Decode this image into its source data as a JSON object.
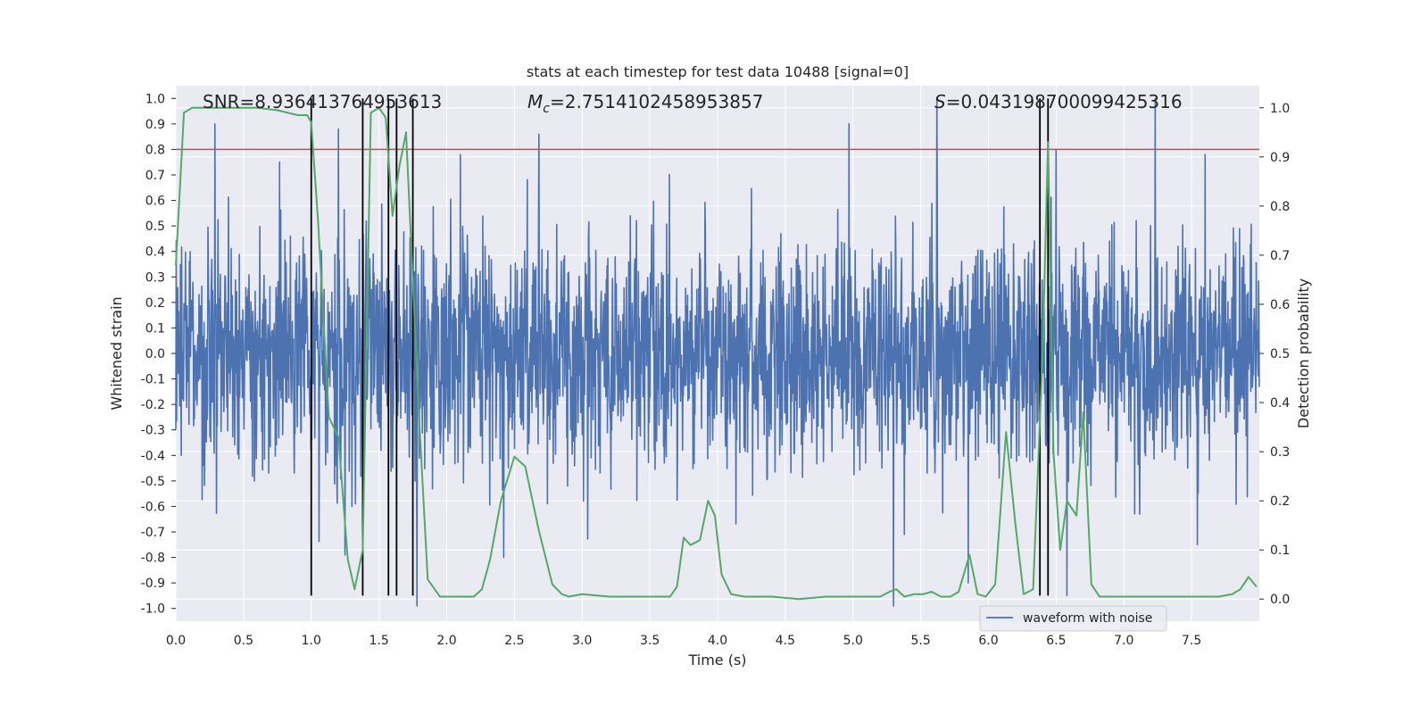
{
  "chart_data": {
    "type": "line",
    "title": "stats at each timestep for test data 10488 [signal=0]",
    "xlabel": "Time (s)",
    "ylabel_left": "Whitened strain",
    "ylabel_right": "Detection probability",
    "xlim": [
      0.0,
      8.0
    ],
    "ylim_left": [
      -1.05,
      1.05
    ],
    "ylim_right": [
      -0.045,
      1.045
    ],
    "x_ticks": [
      "0.0",
      "0.5",
      "1.0",
      "1.5",
      "2.0",
      "2.5",
      "3.0",
      "3.5",
      "4.0",
      "4.5",
      "5.0",
      "5.5",
      "6.0",
      "6.5",
      "7.0",
      "7.5"
    ],
    "y_ticks_left": [
      "1.0",
      "0.9",
      "0.8",
      "0.7",
      "0.6",
      "0.5",
      "0.4",
      "0.3",
      "0.2",
      "0.1",
      "0.0",
      "-0.1",
      "-0.2",
      "-0.3",
      "-0.4",
      "-0.5",
      "-0.6",
      "-0.7",
      "-0.8",
      "-0.9",
      "-1.0"
    ],
    "y_ticks_right": [
      "1.0",
      "0.9",
      "0.8",
      "0.7",
      "0.6",
      "0.5",
      "0.4",
      "0.3",
      "0.2",
      "0.1",
      "0.0"
    ],
    "grid": true,
    "annotations": {
      "snr": "SNR=8.936413764953613",
      "mc_symbol": "M",
      "mc_sub": "c",
      "mc_value": "=2.7514102458953857",
      "s_symbol": "S",
      "s_value": "=0.043198700099425316"
    },
    "threshold": {
      "value": 0.8,
      "color": "#c44e52"
    },
    "vertical_markers": [
      1.0,
      1.38,
      1.57,
      1.63,
      1.75,
      6.38,
      6.44
    ],
    "marker_range_left": [
      -0.95,
      1.0
    ],
    "legend": {
      "label": "waveform with noise",
      "position": "lower-right"
    },
    "series": [
      {
        "name": "waveform with noise",
        "axis": "left",
        "color": "#4c72b0",
        "note": "dense noisy strain, mostly within about -0.6..0.6 with spikes",
        "peaks_high": [
          [
            0.29,
            0.9
          ],
          [
            1.2,
            0.88
          ],
          [
            2.68,
            0.86
          ],
          [
            4.97,
            0.9
          ],
          [
            5.62,
            1.0
          ],
          [
            7.23,
            1.0
          ],
          [
            2.1,
            0.78
          ],
          [
            6.5,
            0.8
          ],
          [
            7.6,
            0.78
          ]
        ],
        "peaks_low": [
          [
            1.78,
            -0.99
          ],
          [
            5.3,
            -0.99
          ],
          [
            6.58,
            -0.95
          ],
          [
            2.42,
            -0.8
          ],
          [
            1.25,
            -0.79
          ],
          [
            5.85,
            -0.9
          ]
        ]
      },
      {
        "name": "detection probability",
        "axis": "right",
        "color": "#55a868",
        "x": [
          0.0,
          0.06,
          0.12,
          0.2,
          0.4,
          0.6,
          0.75,
          0.9,
          0.97,
          1.0,
          1.05,
          1.13,
          1.2,
          1.27,
          1.32,
          1.38,
          1.44,
          1.5,
          1.55,
          1.6,
          1.65,
          1.7,
          1.75,
          1.8,
          1.86,
          1.95,
          2.05,
          2.12,
          2.2,
          2.26,
          2.32,
          2.4,
          2.5,
          2.58,
          2.68,
          2.78,
          2.85,
          2.9,
          3.0,
          3.2,
          3.4,
          3.55,
          3.65,
          3.7,
          3.75,
          3.8,
          3.87,
          3.93,
          3.98,
          4.03,
          4.1,
          4.2,
          4.4,
          4.6,
          4.8,
          5.0,
          5.2,
          5.27,
          5.32,
          5.38,
          5.45,
          5.52,
          5.58,
          5.65,
          5.72,
          5.78,
          5.86,
          5.92,
          5.98,
          6.05,
          6.13,
          6.2,
          6.26,
          6.33,
          6.4,
          6.44,
          6.48,
          6.53,
          6.58,
          6.65,
          6.7,
          6.76,
          6.82,
          6.88,
          6.95,
          7.1,
          7.3,
          7.5,
          7.7,
          7.8,
          7.86,
          7.92,
          7.98
        ],
        "y": [
          0.68,
          0.99,
          1.0,
          1.0,
          1.0,
          1.0,
          0.995,
          0.985,
          0.985,
          0.97,
          0.77,
          0.37,
          0.33,
          0.08,
          0.02,
          0.1,
          0.99,
          1.0,
          0.98,
          0.78,
          0.88,
          0.95,
          0.65,
          0.35,
          0.04,
          0.005,
          0.005,
          0.005,
          0.005,
          0.02,
          0.08,
          0.2,
          0.29,
          0.27,
          0.14,
          0.03,
          0.01,
          0.005,
          0.01,
          0.005,
          0.005,
          0.005,
          0.005,
          0.025,
          0.125,
          0.11,
          0.12,
          0.2,
          0.17,
          0.05,
          0.01,
          0.005,
          0.005,
          0.0,
          0.005,
          0.005,
          0.005,
          0.015,
          0.02,
          0.005,
          0.01,
          0.01,
          0.015,
          0.005,
          0.005,
          0.015,
          0.09,
          0.01,
          0.005,
          0.03,
          0.34,
          0.15,
          0.01,
          0.02,
          0.5,
          0.93,
          0.3,
          0.1,
          0.2,
          0.17,
          0.38,
          0.03,
          0.005,
          0.005,
          0.005,
          0.005,
          0.005,
          0.005,
          0.005,
          0.01,
          0.02,
          0.045,
          0.025
        ]
      }
    ]
  }
}
